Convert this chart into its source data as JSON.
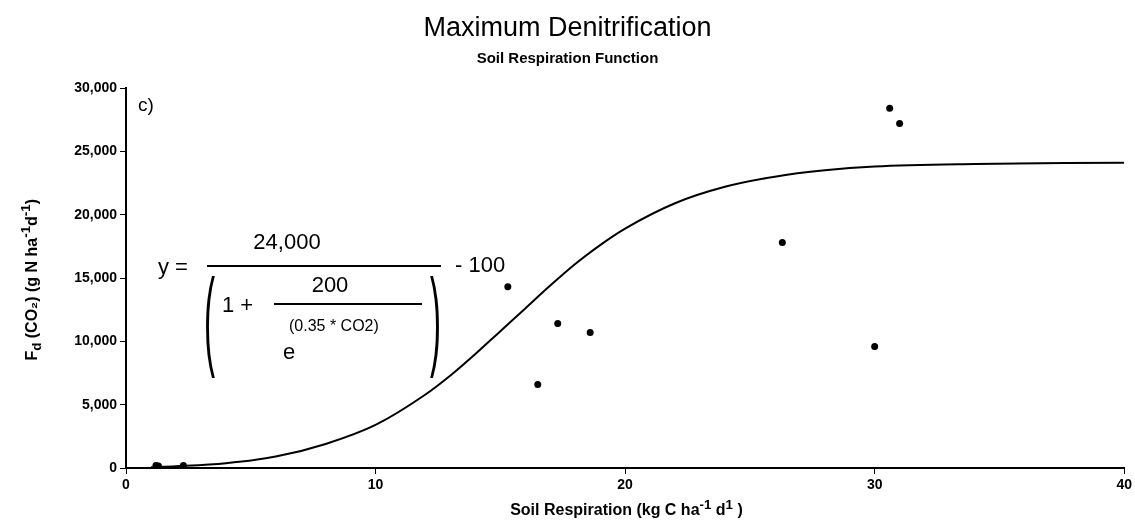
{
  "chart_data": {
    "type": "scatter",
    "title": "Maximum Denitrification",
    "subtitle": "Soil Respiration Function",
    "xlabel": "Soil Respiration (kg C ha$^{-1}$ d$^{1}$ )",
    "ylabel": "F$_{d}$ (CO₂) (g N ha$^{-1}$d$^{-1}$)",
    "annotations": [
      "c)",
      "y =",
      "24,000",
      "- 100",
      "(",
      "1 +",
      "200",
      "(0.35 * CO2)",
      "e",
      ")"
    ],
    "series": [
      {
        "color": "#000000",
        "marker": "circle",
        "x": [
          1.2,
          1.3,
          2.3,
          15.3,
          16.5,
          17.3,
          18.6,
          26.3,
          30,
          30.6,
          31
        ],
        "values": [
          200,
          150,
          200,
          14300,
          6600,
          11400,
          10700,
          17800,
          9600,
          28400,
          27200
        ]
      },
      {
        "type": "line",
        "color": "#000000",
        "marker": "none",
        "line_style": "solid",
        "x": [
          1,
          2,
          4,
          6,
          8,
          10,
          12,
          13,
          14,
          15,
          16,
          17,
          18,
          19,
          20,
          22,
          24,
          26,
          28,
          30,
          34,
          40
        ],
        "values": [
          60,
          140,
          380,
          900,
          1900,
          3400,
          5800,
          7300,
          9000,
          10800,
          12600,
          14400,
          16100,
          17600,
          18900,
          20900,
          22200,
          23000,
          23500,
          23800,
          24000,
          24100
        ]
      }
    ],
    "xlim": [
      0,
      40
    ],
    "xticks": [
      0,
      10,
      20,
      30,
      40
    ],
    "ylim": [
      0,
      30000
    ],
    "yticks": [
      0,
      {
        "value": 5000,
        "label": "5,000"
      },
      {
        "value": 10000,
        "label": "10,000"
      },
      {
        "value": 15000,
        "label": "15,000"
      },
      {
        "value": 20000,
        "label": "20,000"
      },
      {
        "value": 25000,
        "label": "25,000"
      },
      {
        "value": 30000,
        "label": "30,000"
      }
    ],
    "grid": false,
    "legend": false
  }
}
